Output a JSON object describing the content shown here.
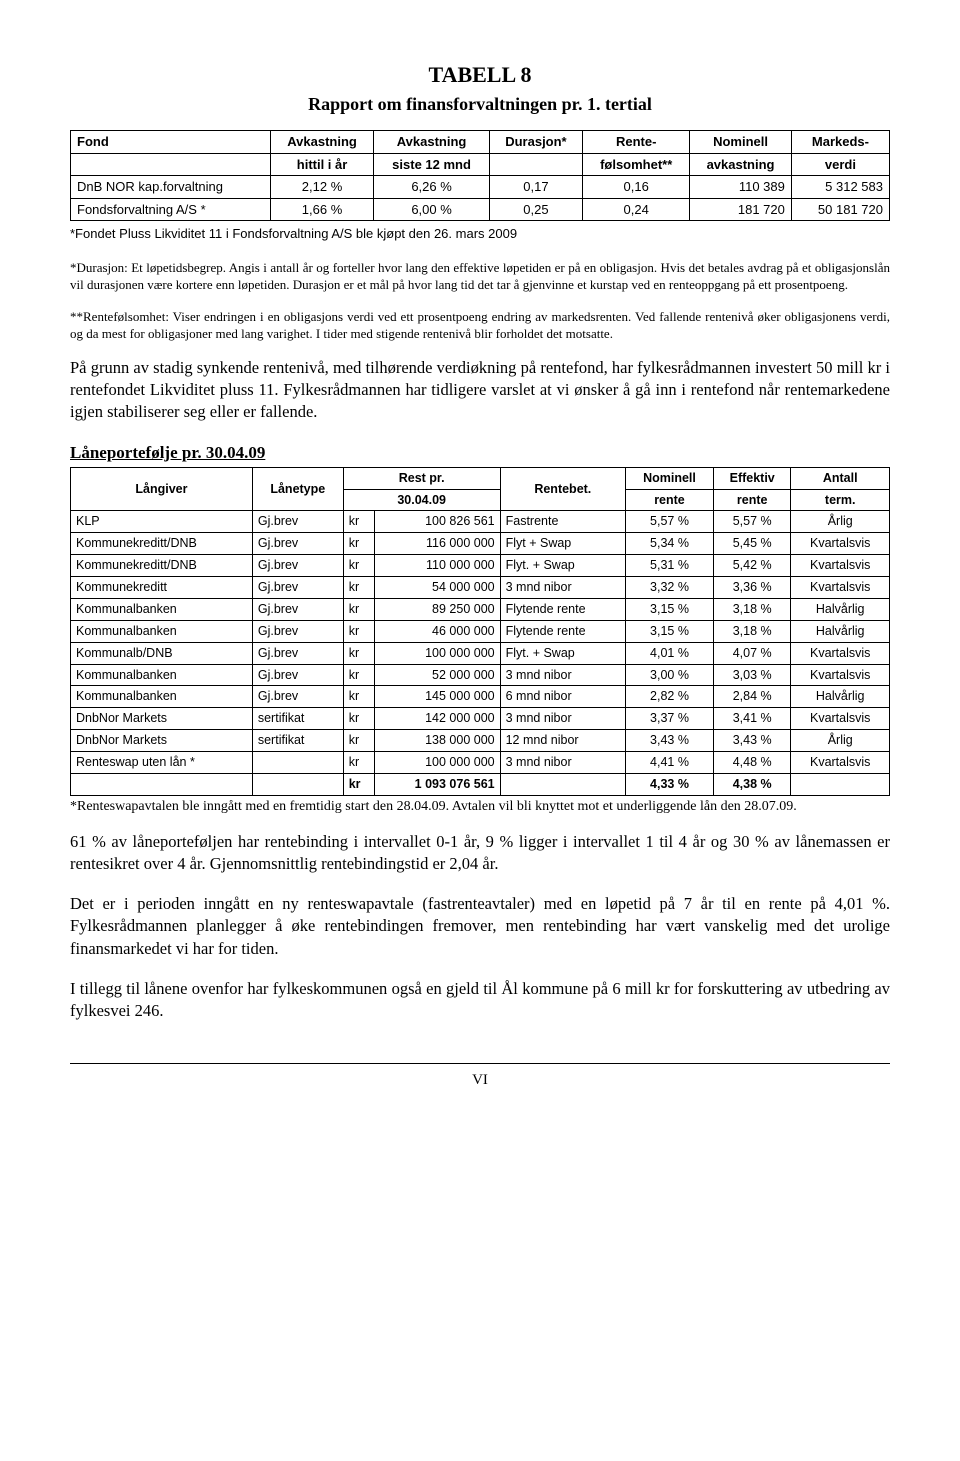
{
  "header": {
    "tabell": "TABELL 8",
    "subtitle": "Rapport om finansforvaltningen pr. 1. tertial"
  },
  "fund_table": {
    "columns": [
      {
        "l1": "Fond",
        "l2": ""
      },
      {
        "l1": "Avkastning",
        "l2": "hittil i år"
      },
      {
        "l1": "Avkastning",
        "l2": "siste 12 mnd"
      },
      {
        "l1": "Durasjon*",
        "l2": ""
      },
      {
        "l1": "Rente-",
        "l2": "følsomhet**"
      },
      {
        "l1": "Nominell",
        "l2": "avkastning"
      },
      {
        "l1": "Markeds-",
        "l2": "verdi"
      }
    ],
    "rows": [
      {
        "fond": "DnB NOR kap.forvaltning",
        "a1": "2,12 %",
        "a2": "6,26 %",
        "dur": "0,17",
        "rf": "0,16",
        "nom": "110 389",
        "mv": "5 312 583"
      },
      {
        "fond": "Fondsforvaltning A/S *",
        "a1": "1,66 %",
        "a2": "6,00 %",
        "dur": "0,25",
        "rf": "0,24",
        "nom": "181 720",
        "mv": "50 181 720"
      }
    ],
    "footnote": "*Fondet Pluss Likviditet 11 i  Fondsforvaltning A/S ble kjøpt den 26. mars 2009"
  },
  "explain": {
    "durasjon": "*Durasjon: Et løpetidsbegrep. Angis i antall år og forteller hvor lang den effektive løpetiden er på en obligasjon. Hvis det betales avdrag på et obligasjonslån vil durasjonen være kortere enn løpetiden. Durasjon er et mål på hvor lang tid det tar å gjenvinne et kurstap ved en renteoppgang på ett prosentpoeng.",
    "rentef": "**Rentefølsomhet: Viser endringen i en obligasjons verdi ved ett prosentpoeng endring av markedsrenten. Ved fallende rentenivå øker obligasjonens verdi, og da mest for obligasjoner med lang varighet. I tider med stigende rentenivå blir forholdet det motsatte."
  },
  "body1": "På grunn av stadig synkende rentenivå, med tilhørende verdiøkning på rentefond, har fylkesrådmannen investert 50 mill kr i rentefondet Likviditet pluss 11. Fylkesrådmannen har tidligere varslet at vi ønsker å gå inn i rentefond når rentemarkedene igjen stabiliserer seg eller er fallende.",
  "loan_section_title": "Låneportefølje pr. 30.04.09",
  "loan_table": {
    "headers": {
      "langiver": "Långiver",
      "lanetype": "Lånetype",
      "rest_l1": "Rest pr.",
      "rest_l2": "30.04.09",
      "rentebet": "Rentebet.",
      "nom_l1": "Nominell",
      "nom_l2": "rente",
      "eff_l1": "Effektiv",
      "eff_l2": "rente",
      "ant_l1": "Antall",
      "ant_l2": "term."
    },
    "rows": [
      {
        "lg": "KLP",
        "lt": "Gj.brev",
        "rc": "kr",
        "amt": "100 826 561",
        "rb": "Fastrente",
        "nr": "5,57 %",
        "er": "5,57 %",
        "at": "Årlig"
      },
      {
        "lg": "Kommunekreditt/DNB",
        "lt": "Gj.brev",
        "rc": "kr",
        "amt": "116 000 000",
        "rb": "Flyt + Swap",
        "nr": "5,34 %",
        "er": "5,45 %",
        "at": "Kvartalsvis"
      },
      {
        "lg": "Kommunekreditt/DNB",
        "lt": "Gj.brev",
        "rc": "kr",
        "amt": "110 000 000",
        "rb": "Flyt. + Swap",
        "nr": "5,31 %",
        "er": "5,42 %",
        "at": "Kvartalsvis"
      },
      {
        "lg": "Kommunekreditt",
        "lt": "Gj.brev",
        "rc": "kr",
        "amt": "54 000 000",
        "rb": "3 mnd nibor",
        "nr": "3,32 %",
        "er": "3,36 %",
        "at": "Kvartalsvis"
      },
      {
        "lg": "Kommunalbanken",
        "lt": "Gj.brev",
        "rc": "kr",
        "amt": "89 250 000",
        "rb": "Flytende rente",
        "nr": "3,15 %",
        "er": "3,18 %",
        "at": "Halvårlig"
      },
      {
        "lg": "Kommunalbanken",
        "lt": "Gj.brev",
        "rc": "kr",
        "amt": "46 000 000",
        "rb": "Flytende rente",
        "nr": "3,15 %",
        "er": "3,18 %",
        "at": "Halvårlig"
      },
      {
        "lg": "Kommunalb/DNB",
        "lt": "Gj.brev",
        "rc": "kr",
        "amt": "100 000 000",
        "rb": "Flyt. + Swap",
        "nr": "4,01 %",
        "er": "4,07 %",
        "at": "Kvartalsvis"
      },
      {
        "lg": "Kommunalbanken",
        "lt": "Gj.brev",
        "rc": "kr",
        "amt": "52 000 000",
        "rb": "3 mnd nibor",
        "nr": "3,00 %",
        "er": "3,03 %",
        "at": "Kvartalsvis"
      },
      {
        "lg": "Kommunalbanken",
        "lt": "Gj.brev",
        "rc": "kr",
        "amt": "145 000 000",
        "rb": "6 mnd nibor",
        "nr": "2,82 %",
        "er": "2,84 %",
        "at": "Halvårlig"
      },
      {
        "lg": "DnbNor Markets",
        "lt": "sertifikat",
        "rc": "kr",
        "amt": "142 000 000",
        "rb": "3 mnd nibor",
        "nr": "3,37 %",
        "er": "3,41 %",
        "at": "Kvartalsvis"
      },
      {
        "lg": "DnbNor Markets",
        "lt": "sertifikat",
        "rc": "kr",
        "amt": "138 000 000",
        "rb": "12 mnd nibor",
        "nr": "3,43 %",
        "er": "3,43 %",
        "at": "Årlig"
      },
      {
        "lg": "Renteswap uten lån *",
        "lt": "",
        "rc": "kr",
        "amt": "100 000 000",
        "rb": "3 mnd nibor",
        "nr": "4,41 %",
        "er": "4,48 %",
        "at": "Kvartalsvis"
      }
    ],
    "total": {
      "rc": "kr",
      "amt": "1 093 076 561",
      "nr": "4,33 %",
      "er": "4,38 %"
    },
    "footnote": "*Renteswapavtalen ble inngått med en fremtidig start den 28.04.09. Avtalen vil bli knyttet mot et underliggende lån den 28.07.09."
  },
  "body2": "61 % av låneporteføljen har rentebinding i intervallet 0-1 år, 9 % ligger i intervallet 1 til 4 år og 30 % av lånemassen er rentesikret over 4 år. Gjennomsnittlig rentebindingstid er 2,04 år.",
  "body3": "Det er i perioden inngått en ny renteswapavtale (fastrenteavtaler) med en løpetid på 7 år til en rente på 4,01 %. Fylkesrådmannen planlegger å øke rentebindingen fremover, men rentebinding har vært vanskelig med det urolige finansmarkedet vi har for tiden.",
  "body4": "I tillegg til lånene ovenfor har fylkeskommunen også en gjeld til Ål kommune på 6 mill kr for forskuttering av utbedring av fylkesvei 246.",
  "footer": "VI"
}
